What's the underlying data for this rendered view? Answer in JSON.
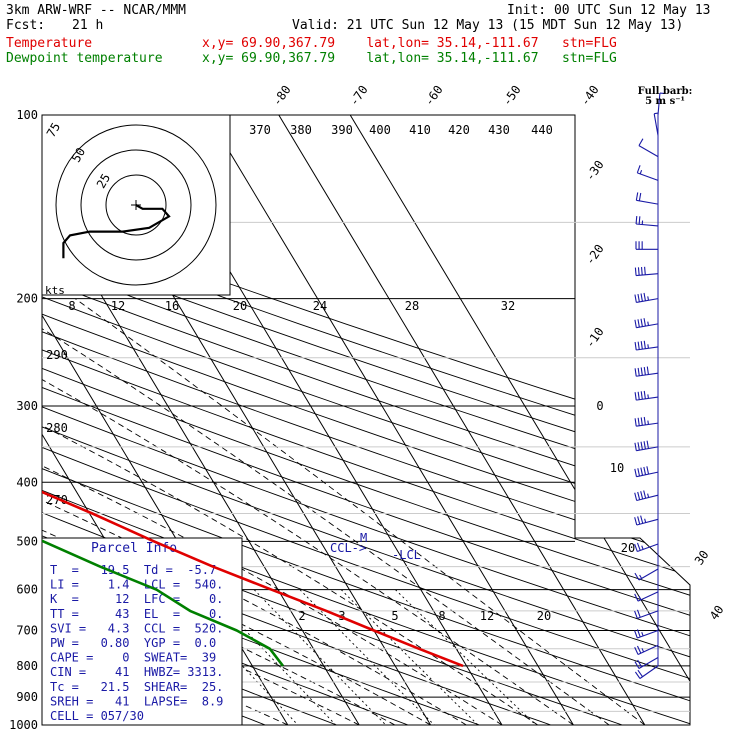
{
  "header": {
    "model": "3km ARW-WRF -- NCAR/MMM",
    "init": "Init: 00 UTC Sun 12 May 13",
    "fcst_label": "Fcst:",
    "fcst_value": "21 h",
    "valid": "Valid: 21 UTC Sun 12 May 13 (15 MDT Sun 12 May 13)",
    "temp_label": "Temperature",
    "temp_loc": "x,y= 69.90,367.79    lat,lon= 35.14,-111.67   stn=FLG",
    "dew_label": "Dewpoint temperature",
    "dew_loc": "x,y= 69.90,367.79    lat,lon= 35.14,-111.67   stn=FLG"
  },
  "colors": {
    "temperature": "#e00000",
    "dewpoint": "#008000",
    "parcel_info": "#1a1aa6",
    "barbs": "#1a1aa6"
  },
  "barb_legend": {
    "line1": "Full barb:",
    "line2": "5 m s⁻¹"
  },
  "hodograph": {
    "units_label": "kts",
    "ring_labels": [
      "75",
      "50",
      "25"
    ],
    "path_uv": [
      [
        0,
        0
      ],
      [
        2,
        -1
      ],
      [
        8,
        -1
      ],
      [
        10,
        -3
      ],
      [
        4,
        -6
      ],
      [
        -4,
        -7
      ],
      [
        -10,
        -7
      ],
      [
        -14,
        -7
      ],
      [
        -20,
        -8
      ],
      [
        -22,
        -10
      ],
      [
        -22,
        -14
      ]
    ]
  },
  "parcel_info": {
    "title": "Parcel Info",
    "rows": [
      "T  =   19.5  Td =  -5.7",
      "LI =    1.4  LCL =  540.",
      "K  =     12  LFC =    0.",
      "TT =     43  EL  =    0.",
      "SVI =   4.3  CCL =  520.",
      "PW =   0.80  YGP =  0.0",
      "CAPE =    0  SWEAT=  39",
      "CIN =    41  HWBZ= 3313.",
      "Tc =   21.5  SHEAR=  25.",
      "SREH =   41  LAPSE=  8.9",
      "CELL = 057/30"
    ]
  },
  "chart_data": {
    "type": "line",
    "chart_kind": "skew-T log-P",
    "y_axis": {
      "quantity": "pressure (hPa)",
      "scale": "log",
      "inverted": true,
      "range": [
        100,
        1000
      ],
      "ticks": [
        100,
        200,
        300,
        400,
        500,
        600,
        700,
        800,
        900,
        1000
      ]
    },
    "isotherm_labels": [
      "-80",
      "-70",
      "-60",
      "-50",
      "-40",
      "-30",
      "-20",
      "-10",
      "0",
      "10",
      "20",
      "30",
      "40"
    ],
    "isentrope_labels": [
      "370",
      "380",
      "390",
      "400",
      "410",
      "420",
      "430",
      "440",
      "290",
      "280",
      "270"
    ],
    "mixing_ratio_labels": [
      "2",
      "3",
      "5",
      "8",
      "12",
      "20"
    ],
    "hodo_speed_labels": [
      "8",
      "12",
      "16",
      "20",
      "24",
      "28",
      "32"
    ],
    "annotations": [
      "CCL->",
      "M",
      "-LCL"
    ],
    "series": [
      {
        "name": "Temperature",
        "points": [
          [
            100,
            -50.7
          ],
          [
            110,
            -52.8
          ],
          [
            125,
            -56.4
          ],
          [
            150,
            -60.0
          ],
          [
            175,
            -62.0
          ],
          [
            200,
            -62.5
          ],
          [
            225,
            -61.1
          ],
          [
            250,
            -57.1
          ],
          [
            300,
            -46.6
          ],
          [
            350,
            -36.2
          ],
          [
            400,
            -27.2
          ],
          [
            450,
            -19.6
          ],
          [
            500,
            -13.3
          ],
          [
            550,
            -7.2
          ],
          [
            600,
            -0.9
          ],
          [
            650,
            5.0
          ],
          [
            700,
            10.0
          ],
          [
            750,
            14.8
          ],
          [
            800,
            19.5
          ]
        ]
      },
      {
        "name": "Dewpoint temperature",
        "points": [
          [
            100,
            -85.7
          ],
          [
            150,
            -87.7
          ],
          [
            175,
            -88.3
          ],
          [
            200,
            -86.9
          ],
          [
            220,
            -87.9
          ],
          [
            250,
            -83.7
          ],
          [
            300,
            -79.2
          ],
          [
            350,
            -76.3
          ],
          [
            370,
            -56.8
          ],
          [
            400,
            -43.3
          ],
          [
            450,
            -34.5
          ],
          [
            480,
            -32.2
          ],
          [
            500,
            -28.8
          ],
          [
            550,
            -23.0
          ],
          [
            600,
            -17.0
          ],
          [
            650,
            -14.1
          ],
          [
            700,
            -9.2
          ],
          [
            750,
            -6.1
          ],
          [
            800,
            -5.7
          ]
        ]
      }
    ],
    "wind_barbs": [
      {
        "p": 100,
        "spd_ms": 3,
        "dir": 5
      },
      {
        "p": 108,
        "spd_ms": 4,
        "dir": 350
      },
      {
        "p": 117,
        "spd_ms": 6,
        "dir": 300
      },
      {
        "p": 128,
        "spd_ms": 8,
        "dir": 290
      },
      {
        "p": 140,
        "spd_ms": 10,
        "dir": 280
      },
      {
        "p": 152,
        "spd_ms": 12,
        "dir": 275
      },
      {
        "p": 166,
        "spd_ms": 16,
        "dir": 270
      },
      {
        "p": 182,
        "spd_ms": 20,
        "dir": 265
      },
      {
        "p": 200,
        "spd_ms": 22,
        "dir": 260
      },
      {
        "p": 220,
        "spd_ms": 24,
        "dir": 260
      },
      {
        "p": 240,
        "spd_ms": 24,
        "dir": 262
      },
      {
        "p": 265,
        "spd_ms": 25,
        "dir": 262
      },
      {
        "p": 290,
        "spd_ms": 22,
        "dir": 262
      },
      {
        "p": 320,
        "spd_ms": 22,
        "dir": 262
      },
      {
        "p": 350,
        "spd_ms": 25,
        "dir": 260
      },
      {
        "p": 385,
        "spd_ms": 25,
        "dir": 258
      },
      {
        "p": 420,
        "spd_ms": 22,
        "dir": 256
      },
      {
        "p": 460,
        "spd_ms": 18,
        "dir": 255
      },
      {
        "p": 505,
        "spd_ms": 14,
        "dir": 250
      },
      {
        "p": 555,
        "spd_ms": 8,
        "dir": 240
      },
      {
        "p": 605,
        "spd_ms": 8,
        "dir": 245
      },
      {
        "p": 650,
        "spd_ms": 10,
        "dir": 250
      },
      {
        "p": 700,
        "spd_ms": 12,
        "dir": 250
      },
      {
        "p": 740,
        "spd_ms": 12,
        "dir": 245
      },
      {
        "p": 775,
        "spd_ms": 10,
        "dir": 240
      },
      {
        "p": 800,
        "spd_ms": 10,
        "dir": 235
      }
    ]
  }
}
